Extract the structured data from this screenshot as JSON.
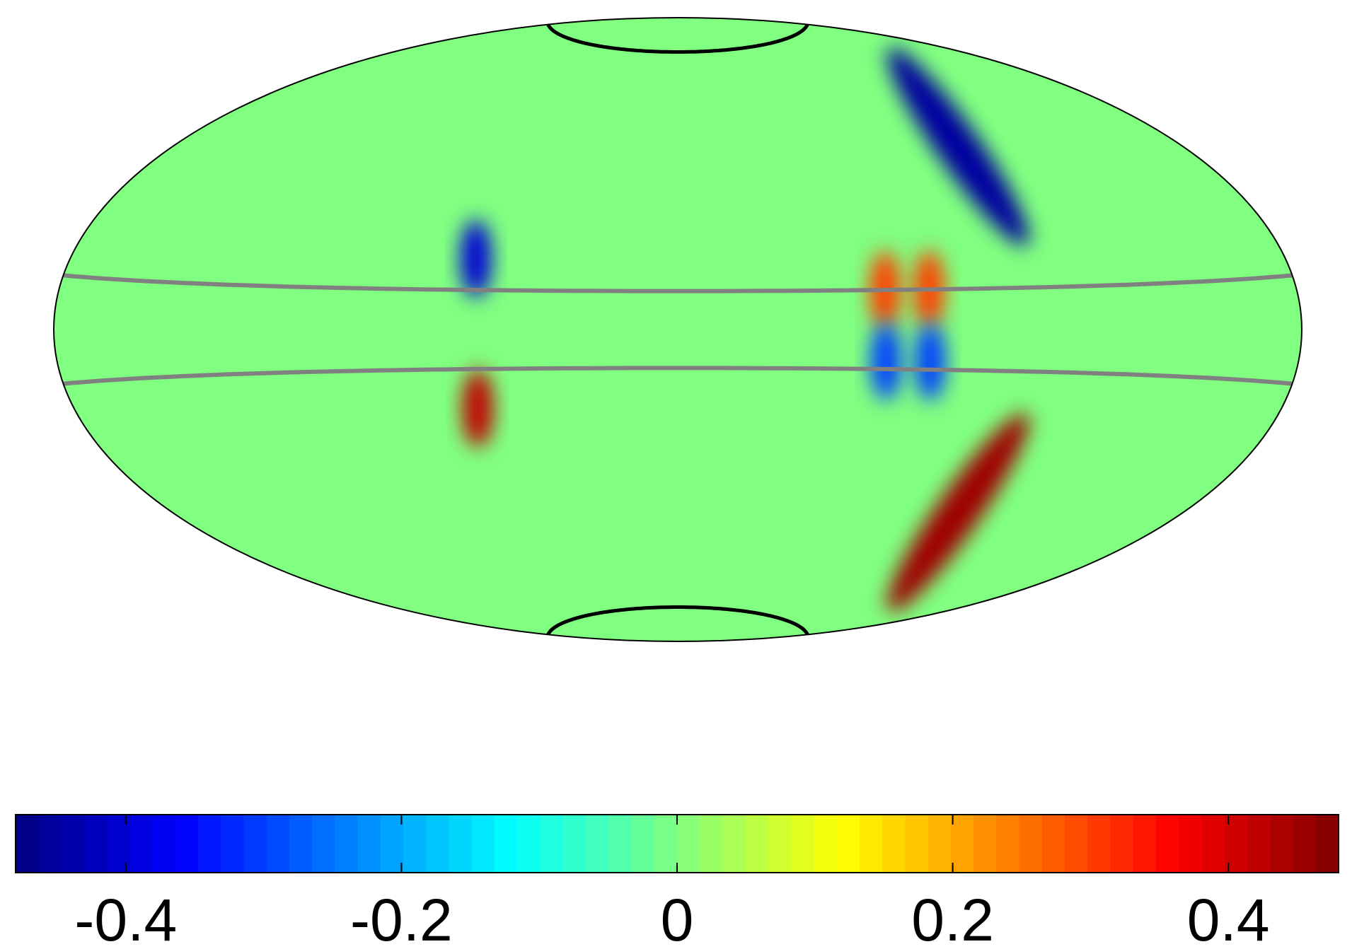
{
  "chart_data": {
    "type": "heatmap",
    "projection": "Hammer-Aitoff (full sky)",
    "title": "",
    "colormap": "jet",
    "colorbar": {
      "orientation": "horizontal",
      "placement": "bottom",
      "range": [
        -0.48,
        0.48
      ],
      "ticks": [
        -0.4,
        -0.2,
        0,
        0.2,
        0.4
      ],
      "tick_labels": [
        "-0.4",
        "-0.2",
        "0",
        "0.2",
        "0.4"
      ],
      "levels": 58
    },
    "overlay_lines": [
      {
        "kind": "latitude-circle",
        "color": "#000000"
      },
      {
        "kind": "latitude-circle",
        "color": "#000000"
      },
      {
        "kind": "latitude-band-edge",
        "color": "#808080"
      },
      {
        "kind": "latitude-band-edge",
        "color": "#808080"
      }
    ],
    "features": [
      {
        "lon": -55,
        "lat": 18,
        "value": -0.4
      },
      {
        "lon": -55,
        "lat": -20,
        "value": 0.42
      },
      {
        "lon": 55,
        "lat": 10,
        "value": 0.3
      },
      {
        "lon": 67,
        "lat": 10,
        "value": 0.3
      },
      {
        "lon": 55,
        "lat": -8,
        "value": -0.3
      },
      {
        "lon": 67,
        "lat": -8,
        "value": -0.3
      },
      {
        "lon": 100,
        "lat": 45,
        "value": -0.45
      },
      {
        "lon": 100,
        "lat": -45,
        "value": 0.45
      }
    ]
  }
}
